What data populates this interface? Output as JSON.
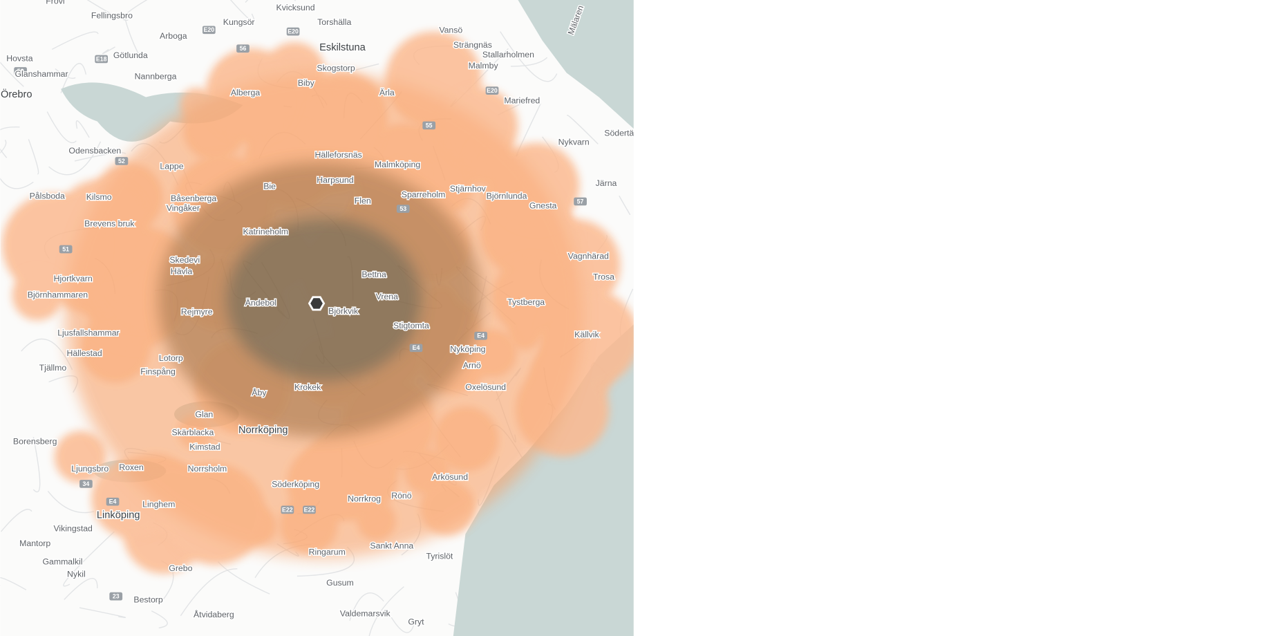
{
  "places": [
    "Frövi",
    "Fellingsbro",
    "Kvicksund",
    "Kungsör",
    "Torshälla",
    "Vansö",
    "Arboga",
    "Götlunda",
    "Eskilstuna",
    "Strängnäs",
    "Stallarholmen",
    "Hovsta",
    "Glanshammar",
    "Nannberga",
    "Malmby",
    "Skogstorp",
    "Biby",
    "Örebro",
    "Alberga",
    "Ärla",
    "Mariefred",
    "Södertä",
    "Nykvarn",
    "Odensbacken",
    "Hälleforsnäs",
    "Lappe",
    "Malmköping",
    "Harpsund",
    "Stjärnhov",
    "Sparreholm",
    "Björnlunda",
    "Pålsboda",
    "Kilsmo",
    "Bie",
    "Flen",
    "Järna",
    "Gnesta",
    "Båsenberga",
    "Vingåker",
    "Brevens bruk",
    "Katrineholm",
    "Vagnhärad",
    "Skedevi",
    "Hävla",
    "Bettna",
    "Trosa",
    "Hjortkvarn",
    "Björnhammaren",
    "Ändebol",
    "Vrena",
    "Tystberga",
    "Rejmyre",
    "Björkvik",
    "Stigtomta",
    "Ljusfallshammar",
    "Källvik",
    "Hällestad",
    "Lotorp",
    "Nyköping",
    "Arnö",
    "Tjällmo",
    "Finspång",
    "Åby",
    "Krokek",
    "Oxelösund",
    "Glan",
    "Norrköping",
    "Skärblacka",
    "Borensberg",
    "Kimstad",
    "Ljungsbro",
    "Roxen",
    "Norrsholm",
    "Arkösund",
    "Söderköping",
    "Rönö",
    "Norrkrog",
    "Linghem",
    "Linköping",
    "Vikingstad",
    "Mantorp",
    "Sankt Anna",
    "Tyrislöt",
    "Ringarum",
    "Gammalkil",
    "Grebo",
    "Nykil",
    "Gusum",
    "Bestorp",
    "Åtvidaberg",
    "Valdemarsvik",
    "Gryt",
    "Mälaren"
  ],
  "road_labels": [
    "E20",
    "E20",
    "56",
    "E18",
    "50",
    "E20",
    "55",
    "52",
    "57",
    "51",
    "53",
    "E4",
    "E4",
    "E22",
    "E22",
    "34",
    "E4",
    "23"
  ]
}
